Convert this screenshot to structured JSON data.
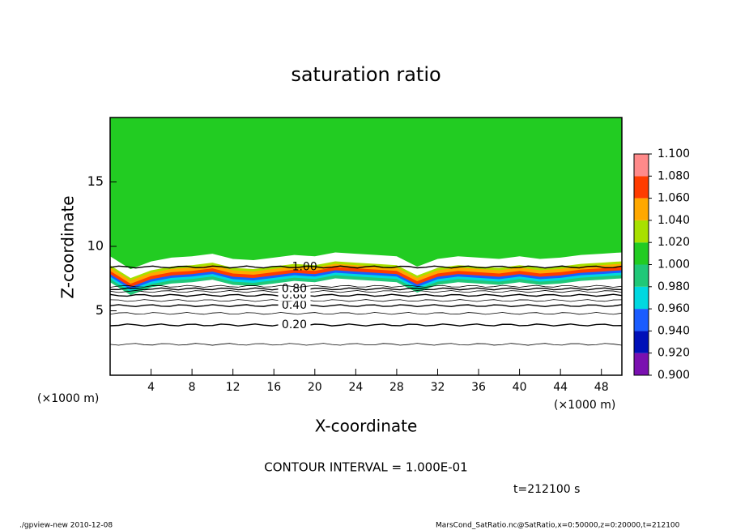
{
  "chart_data": {
    "type": "contour",
    "title": "saturation ratio",
    "x_label": "X-coordinate",
    "y_label": "Z-coordinate",
    "x_unit_left": "(×1000 m)",
    "x_unit_right": "(×1000 m)",
    "xlim": [
      0,
      50
    ],
    "ylim": [
      0,
      20
    ],
    "xticks": [
      4,
      8,
      12,
      16,
      20,
      24,
      28,
      32,
      36,
      40,
      44,
      48
    ],
    "yticks": [
      5,
      10,
      15
    ],
    "saturated_base": {
      "x": [
        0,
        2,
        4,
        6,
        8,
        10,
        12,
        14,
        16,
        18,
        20,
        22,
        24,
        26,
        28,
        30,
        32,
        34,
        36,
        38,
        40,
        42,
        44,
        46,
        48,
        50
      ],
      "z": [
        8.6,
        7.6,
        8.2,
        8.5,
        8.6,
        8.8,
        8.4,
        8.3,
        8.5,
        8.7,
        8.6,
        8.9,
        8.8,
        8.7,
        8.6,
        7.8,
        8.4,
        8.6,
        8.5,
        8.4,
        8.6,
        8.4,
        8.5,
        8.7,
        8.8,
        8.9
      ]
    },
    "contours": [
      {
        "level": 0.1,
        "z": 2.4,
        "label": null
      },
      {
        "level": 0.2,
        "z": 3.9,
        "label": "0.20"
      },
      {
        "level": 0.3,
        "z": 4.8,
        "label": null
      },
      {
        "level": 0.4,
        "z": 5.4,
        "label": "0.40"
      },
      {
        "level": 0.5,
        "z": 5.8,
        "label": null
      },
      {
        "level": 0.6,
        "z": 6.2,
        "label": "0.60"
      },
      {
        "level": 0.7,
        "z": 6.5,
        "label": null
      },
      {
        "level": 0.8,
        "z": 6.7,
        "label": "0.80"
      },
      {
        "level": 0.9,
        "z": 6.9,
        "label": null
      },
      {
        "level": 1.0,
        "z": 8.4,
        "label": "1.00"
      }
    ],
    "colorbar": {
      "lim": [
        0.9,
        1.1
      ],
      "ticks": [
        {
          "value": 0.9,
          "label": "0.900"
        },
        {
          "value": 0.92,
          "label": "0.920"
        },
        {
          "value": 0.94,
          "label": "0.940"
        },
        {
          "value": 0.96,
          "label": "0.960"
        },
        {
          "value": 0.98,
          "label": "0.980"
        },
        {
          "value": 1.0,
          "label": "1.000"
        },
        {
          "value": 1.02,
          "label": "1.020"
        },
        {
          "value": 1.04,
          "label": "1.040"
        },
        {
          "value": 1.06,
          "label": "1.060"
        },
        {
          "value": 1.08,
          "label": "1.080"
        },
        {
          "value": 1.1,
          "label": "1.100"
        }
      ],
      "colors": [
        "#7a10b0",
        "#0010b8",
        "#1a5cff",
        "#00d8e0",
        "#20c878",
        "#22cc22",
        "#a8e000",
        "#ffa800",
        "#ff3c00",
        "#ff8a8a"
      ]
    },
    "footer_interval": "CONTOUR INTERVAL = 1.000E-01",
    "footer_time": "t=212100 s",
    "footer_left": "./gpview-new  2010-12-08",
    "footer_right": "MarsCond_SatRatio.nc@SatRatio,x=0:50000,z=0:20000,t=212100"
  }
}
